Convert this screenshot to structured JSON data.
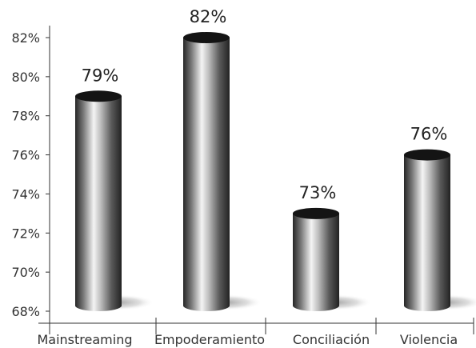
{
  "chart_data": {
    "type": "bar",
    "categories": [
      "Mainstreaming",
      "Empoderamiento",
      "Conciliación",
      "Violencia"
    ],
    "values": [
      79,
      82,
      73,
      76
    ],
    "data_labels": [
      "79%",
      "82%",
      "73%",
      "76%"
    ],
    "ylim": [
      68,
      82
    ],
    "yticks": [
      68,
      70,
      72,
      74,
      76,
      78,
      80,
      82
    ],
    "ytick_labels": [
      "68%",
      "70%",
      "72%",
      "74%",
      "76%",
      "78%",
      "80%",
      "82%"
    ],
    "title": "",
    "xlabel": "",
    "ylabel": "",
    "grid": false,
    "bar_style": "3d cylinder",
    "colors": {
      "bar_dark": "#2b2b2b",
      "bar_light": "#f2f2f2",
      "bar_top": "#141414",
      "axis": "#333333",
      "text": "#333333"
    }
  }
}
